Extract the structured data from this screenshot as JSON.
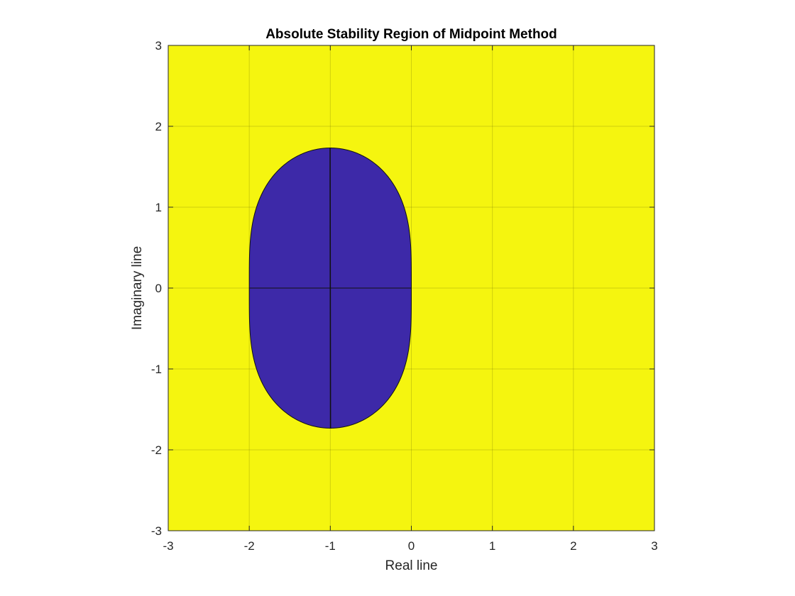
{
  "chart_data": {
    "type": "area",
    "title": "Absolute Stability Region of Midpoint Method",
    "xlabel": "Real line",
    "ylabel": "Imaginary line",
    "xlim": [
      -3,
      3
    ],
    "ylim": [
      -3,
      3
    ],
    "xticks": [
      -3,
      -2,
      -1,
      0,
      1,
      2,
      3
    ],
    "yticks": [
      -3,
      -2,
      -1,
      0,
      1,
      2,
      3
    ],
    "xtick_labels": [
      "-3",
      "-2",
      "-1",
      "0",
      "1",
      "2",
      "3"
    ],
    "ytick_labels": [
      "-3",
      "-2",
      "-1",
      "0",
      "1",
      "2",
      "3"
    ],
    "grid": true,
    "legend": "none",
    "region": {
      "boundary": "|1 + z + z^2/2| = 1",
      "real_extent": [
        -2,
        0
      ],
      "imag_extent": [
        -1.732,
        1.732
      ],
      "inside_color": "#3d29a8",
      "outside_color": "#f5f50f"
    }
  }
}
